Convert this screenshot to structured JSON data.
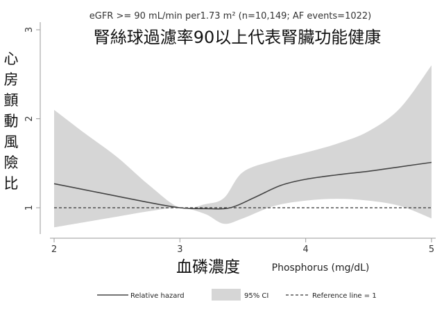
{
  "chart_data": {
    "type": "line",
    "subtitle": "eGFR >= 90 mL/min per1.73 m² (n=10,149; AF events=1022)",
    "title": "腎絲球過濾率90以上代表腎臟功能健康",
    "ylabel": "心房顫動風險比",
    "xlabel_zh": "血磷濃度",
    "xlabel": "Phosphorus (mg/dL)",
    "xlim": [
      2,
      5
    ],
    "ylim": [
      0.8,
      3
    ],
    "x_ticks": [
      2,
      3,
      4,
      5
    ],
    "y_ticks": [
      1,
      2,
      3
    ],
    "x_tick_labels": [
      "2",
      "3",
      "4",
      "5"
    ],
    "y_tick_labels": [
      "1",
      "2",
      "3"
    ],
    "series": [
      {
        "name": "Relative hazard",
        "x": [
          2.0,
          2.25,
          2.5,
          2.75,
          3.0,
          3.2,
          3.4,
          3.6,
          3.8,
          4.0,
          4.25,
          4.5,
          4.75,
          5.0
        ],
        "y": [
          1.27,
          1.2,
          1.13,
          1.06,
          1.0,
          0.99,
          1.0,
          1.12,
          1.25,
          1.32,
          1.37,
          1.41,
          1.46,
          1.51
        ]
      },
      {
        "name": "95% CI",
        "x": [
          2.0,
          2.25,
          2.5,
          2.75,
          3.0,
          3.2,
          3.35,
          3.5,
          3.75,
          4.0,
          4.25,
          4.5,
          4.75,
          5.0
        ],
        "lower": [
          0.78,
          0.84,
          0.9,
          0.96,
          1.0,
          0.93,
          0.82,
          0.88,
          1.02,
          1.08,
          1.1,
          1.08,
          1.02,
          0.88
        ],
        "upper": [
          2.1,
          1.83,
          1.57,
          1.26,
          1.0,
          1.04,
          1.11,
          1.4,
          1.53,
          1.62,
          1.72,
          1.86,
          2.12,
          2.6
        ]
      },
      {
        "name": "Reference line = 1",
        "y": 1
      }
    ],
    "legend": {
      "position": "bottom",
      "items": [
        "Relative hazard",
        "95% CI",
        "Reference line = 1"
      ]
    },
    "colors": {
      "line": "#444444",
      "ci_fill": "#d6d6d6",
      "reference": "#333333"
    },
    "grid": false
  }
}
